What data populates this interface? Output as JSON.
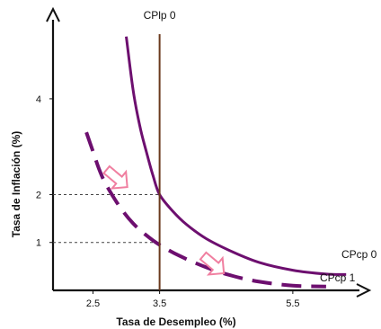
{
  "chart_data": {
    "type": "line",
    "title": "",
    "xlabel": "Tasa de Desempleo (%)",
    "ylabel": "Tasa de Inflación (%)",
    "xlim": [
      1.9,
      6.5
    ],
    "ylim": [
      0,
      5.5
    ],
    "x_ticks": [
      2.5,
      3.5,
      5.5
    ],
    "x_tick_labels": [
      "2.5",
      "3.5",
      "5.5"
    ],
    "y_ticks": [
      1,
      2,
      4
    ],
    "y_tick_labels": [
      "1",
      "2",
      "4"
    ],
    "series": [
      {
        "name": "CPcp 0",
        "style": "solid",
        "color": "#6d0f6f",
        "x": [
          3.0,
          3.1,
          3.2,
          3.3,
          3.4,
          3.5,
          3.7,
          3.9,
          4.2,
          4.6,
          5.0,
          5.5,
          6.0,
          6.3
        ],
        "y": [
          5.3,
          4.2,
          3.45,
          2.9,
          2.4,
          2.0,
          1.65,
          1.38,
          1.08,
          0.8,
          0.58,
          0.42,
          0.34,
          0.33
        ]
      },
      {
        "name": "CPcp 1",
        "style": "dashed",
        "color": "#6d0f6f",
        "x": [
          2.4,
          2.5,
          2.6,
          2.7,
          2.9,
          3.1,
          3.3,
          3.5,
          3.8,
          4.2,
          4.6,
          5.0,
          5.5,
          6.0
        ],
        "y": [
          3.3,
          2.9,
          2.5,
          2.2,
          1.75,
          1.4,
          1.15,
          0.95,
          0.72,
          0.48,
          0.3,
          0.18,
          0.1,
          0.08
        ]
      },
      {
        "name": "CPlp 0",
        "style": "vertical",
        "color": "#6b3a1e",
        "x": [
          3.5,
          3.5
        ],
        "y": [
          0,
          5.35
        ]
      }
    ],
    "reference_lines": [
      {
        "y": 2,
        "x_to": 3.5,
        "style": "dotted"
      },
      {
        "y": 1,
        "x_to": 3.5,
        "style": "dotted"
      }
    ],
    "arrows": [
      {
        "at": [
          2.85,
          2.35
        ],
        "direction": "down-right",
        "color": "#f07fa0"
      },
      {
        "at": [
          4.3,
          0.55
        ],
        "direction": "down-right",
        "color": "#f07fa0"
      }
    ]
  }
}
